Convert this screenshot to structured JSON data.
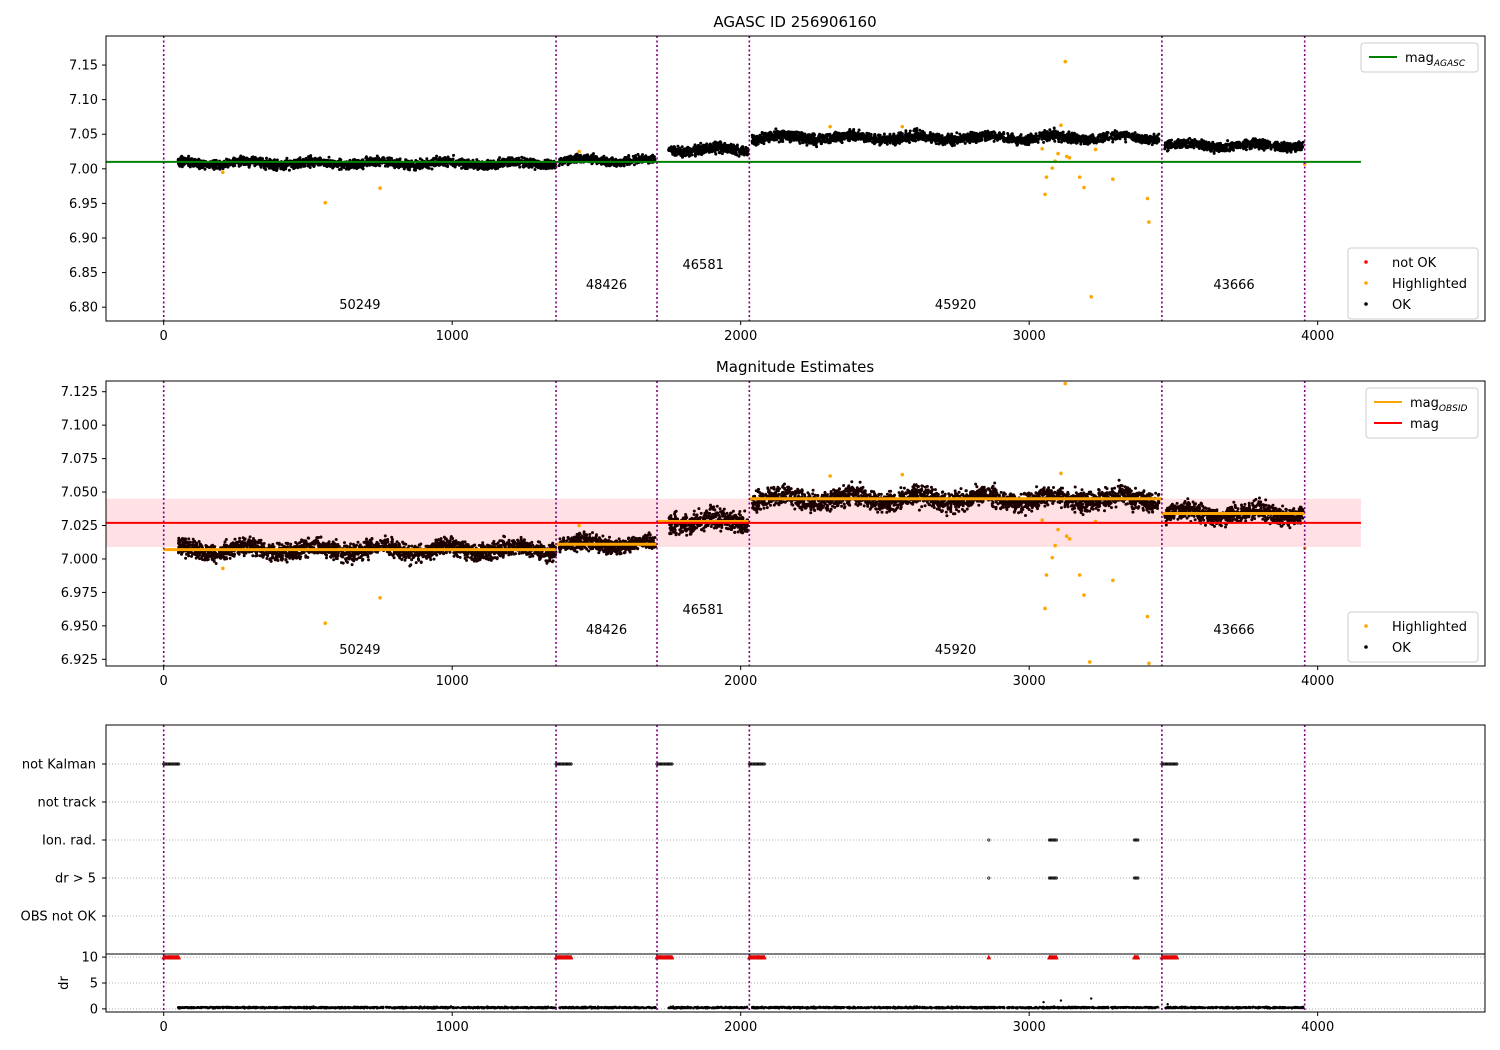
{
  "chart_data": [
    {
      "type": "scatter",
      "title": "AGASC ID 256906160",
      "xlim": [
        -200,
        4580
      ],
      "ylim": [
        6.78,
        7.192
      ],
      "x_ticks": [
        0,
        1000,
        2000,
        3000,
        4000
      ],
      "y_ticks": [
        6.8,
        6.85,
        6.9,
        6.95,
        7.0,
        7.05,
        7.1,
        7.15
      ],
      "y_tick_labels": [
        "6.80",
        "6.85",
        "6.90",
        "6.95",
        "7.00",
        "7.05",
        "7.10",
        "7.15"
      ],
      "grid": false,
      "legend_upper": {
        "placement": "top-right",
        "entries": [
          {
            "label": "mag",
            "subscript": "AGASC",
            "color": "#008000",
            "kind": "line"
          }
        ]
      },
      "legend_lower": {
        "placement": "bottom-right",
        "entries": [
          {
            "label": "not OK",
            "color": "#ff0000",
            "kind": "dot"
          },
          {
            "label": "Highlighted",
            "color": "#ffa500",
            "kind": "dot"
          },
          {
            "label": "OK",
            "color": "#000000",
            "kind": "dot"
          }
        ]
      },
      "reference_lines": [
        {
          "series": "mag_AGASC",
          "y": 7.01,
          "x_range": [
            -200,
            4150
          ],
          "color": "#008000"
        }
      ],
      "obsid_boundaries": [
        0,
        1360,
        1710,
        2030,
        3460,
        3955
      ],
      "obsid_labels": [
        {
          "text": "50249",
          "x": 680,
          "y": 6.797
        },
        {
          "text": "48426",
          "x": 1535,
          "y": 6.826
        },
        {
          "text": "46581",
          "x": 1870,
          "y": 6.855
        },
        {
          "text": "45920",
          "x": 2745,
          "y": 6.797
        },
        {
          "text": "43666",
          "x": 3710,
          "y": 6.826
        }
      ],
      "segments_ok": [
        {
          "x": [
            50,
            1360
          ],
          "mean": 7.008,
          "spread": 0.009
        },
        {
          "x": [
            1370,
            1705
          ],
          "mean": 7.012,
          "spread": 0.008
        },
        {
          "x": [
            1750,
            2025
          ],
          "mean": 7.028,
          "spread": 0.01
        },
        {
          "x": [
            2040,
            3450
          ],
          "mean": 7.045,
          "spread": 0.01
        },
        {
          "x": [
            3470,
            3950
          ],
          "mean": 7.034,
          "spread": 0.009
        }
      ],
      "highlighted_points": [
        [
          205,
          6.995
        ],
        [
          560,
          6.951
        ],
        [
          750,
          6.972
        ],
        [
          1440,
          7.025
        ],
        [
          2310,
          7.061
        ],
        [
          2560,
          7.061
        ],
        [
          3045,
          7.029
        ],
        [
          3055,
          6.963
        ],
        [
          3060,
          6.988
        ],
        [
          3080,
          7.001
        ],
        [
          3090,
          7.011
        ],
        [
          3100,
          7.022
        ],
        [
          3110,
          7.063
        ],
        [
          3125,
          7.155
        ],
        [
          3130,
          7.018
        ],
        [
          3140,
          7.016
        ],
        [
          3175,
          6.988
        ],
        [
          3190,
          6.973
        ],
        [
          3215,
          6.815
        ],
        [
          3230,
          7.028
        ],
        [
          3290,
          6.985
        ],
        [
          3410,
          6.957
        ],
        [
          3415,
          6.923
        ],
        [
          3955,
          7.007
        ]
      ]
    },
    {
      "type": "scatter",
      "title": "Magnitude Estimates",
      "xlim": [
        -200,
        4580
      ],
      "ylim": [
        6.92,
        7.133
      ],
      "x_ticks": [
        0,
        1000,
        2000,
        3000,
        4000
      ],
      "y_ticks": [
        6.925,
        6.95,
        6.975,
        7.0,
        7.025,
        7.05,
        7.075,
        7.1,
        7.125
      ],
      "y_tick_labels": [
        "6.925",
        "6.950",
        "6.975",
        "7.000",
        "7.025",
        "7.050",
        "7.075",
        "7.100",
        "7.125"
      ],
      "grid": false,
      "legend_upper": {
        "placement": "top-right",
        "entries": [
          {
            "label": "mag",
            "subscript": "OBSID",
            "color": "#ffa500",
            "kind": "line"
          },
          {
            "label": "mag",
            "subscript": "",
            "color": "#ff0000",
            "kind": "line"
          }
        ]
      },
      "legend_lower": {
        "placement": "bottom-right",
        "entries": [
          {
            "label": "Highlighted",
            "color": "#ffa500",
            "kind": "dot"
          },
          {
            "label": "OK",
            "color": "#000000",
            "kind": "dot"
          }
        ]
      },
      "mag_line": {
        "y": 7.027,
        "band": [
          7.009,
          7.045
        ],
        "x_range": [
          -200,
          4150
        ],
        "color": "#ff0000",
        "band_color": "#ffe0e4"
      },
      "obsid_mean_lines": [
        {
          "x": [
            0,
            1360
          ],
          "y": 7.007
        },
        {
          "x": [
            1360,
            1710
          ],
          "y": 7.011
        },
        {
          "x": [
            1710,
            2030
          ],
          "y": 7.028
        },
        {
          "x": [
            2030,
            3460
          ],
          "y": 7.045
        },
        {
          "x": [
            3460,
            3955
          ],
          "y": 7.034
        }
      ],
      "obsid_boundaries": [
        0,
        1360,
        1710,
        2030,
        3460,
        3955
      ],
      "obsid_labels": [
        {
          "text": "50249",
          "x": 680,
          "y": 6.929
        },
        {
          "text": "48426",
          "x": 1535,
          "y": 6.944
        },
        {
          "text": "46581",
          "x": 1870,
          "y": 6.959
        },
        {
          "text": "45920",
          "x": 2745,
          "y": 6.929
        },
        {
          "text": "43666",
          "x": 3710,
          "y": 6.944
        }
      ],
      "segments_ok": [
        {
          "x": [
            50,
            1360
          ],
          "mean": 7.007,
          "spread": 0.009
        },
        {
          "x": [
            1370,
            1705
          ],
          "mean": 7.011,
          "spread": 0.008
        },
        {
          "x": [
            1750,
            2025
          ],
          "mean": 7.028,
          "spread": 0.01
        },
        {
          "x": [
            2040,
            3450
          ],
          "mean": 7.045,
          "spread": 0.01
        },
        {
          "x": [
            3470,
            3950
          ],
          "mean": 7.034,
          "spread": 0.009
        }
      ],
      "highlighted_points": [
        [
          205,
          6.993
        ],
        [
          560,
          6.952
        ],
        [
          750,
          6.971
        ],
        [
          1440,
          7.025
        ],
        [
          2310,
          7.062
        ],
        [
          2560,
          7.063
        ],
        [
          3045,
          7.029
        ],
        [
          3055,
          6.963
        ],
        [
          3060,
          6.988
        ],
        [
          3080,
          7.001
        ],
        [
          3090,
          7.01
        ],
        [
          3100,
          7.022
        ],
        [
          3110,
          7.064
        ],
        [
          3125,
          7.131
        ],
        [
          3130,
          7.017
        ],
        [
          3140,
          7.015
        ],
        [
          3175,
          6.988
        ],
        [
          3190,
          6.973
        ],
        [
          3210,
          6.923
        ],
        [
          3230,
          7.028
        ],
        [
          3290,
          6.984
        ],
        [
          3410,
          6.957
        ],
        [
          3415,
          6.922
        ],
        [
          3955,
          7.008
        ]
      ]
    },
    {
      "type": "scatter",
      "title": "",
      "xlim": [
        -200,
        4580
      ],
      "categories": [
        "not Kalman",
        "not track",
        "Ion. rad.",
        "dr > 5",
        "OBS not OK"
      ],
      "flags": {
        "not Kalman": [
          [
            0,
            55
          ],
          [
            1360,
            1415
          ],
          [
            1710,
            1765
          ],
          [
            2030,
            2085
          ],
          [
            3460,
            3515
          ]
        ],
        "not track": [],
        "Ion. rad.": [
          [
            2860,
            2862
          ],
          [
            3070,
            3095
          ],
          [
            3365,
            3380
          ]
        ],
        "dr > 5": [
          [
            2860,
            2862
          ],
          [
            3070,
            3095
          ],
          [
            3365,
            3380
          ]
        ],
        "OBS not OK": []
      },
      "obsid_boundaries": [
        0,
        1360,
        1710,
        2030,
        3460,
        3955
      ],
      "grid": "horizontal dotted"
    },
    {
      "type": "scatter",
      "title": "",
      "ylabel": "dr",
      "xlim": [
        -200,
        4580
      ],
      "ylim": [
        -0.6,
        10.6
      ],
      "x_ticks": [
        0,
        1000,
        2000,
        3000,
        4000
      ],
      "y_ticks": [
        0,
        5,
        10
      ],
      "grid": "horizontal dotted",
      "clipped_markers": [
        [
          0,
          55
        ],
        [
          1360,
          1415
        ],
        [
          1710,
          1765
        ],
        [
          2030,
          2085
        ],
        [
          2860,
          2862
        ],
        [
          3070,
          3095
        ],
        [
          3365,
          3380
        ],
        [
          3460,
          3515
        ]
      ],
      "clip_value": 10,
      "baseline": {
        "segments": [
          [
            50,
            1360
          ],
          [
            1370,
            1705
          ],
          [
            1750,
            2025
          ],
          [
            2040,
            3450
          ],
          [
            3470,
            3950
          ]
        ],
        "mean": 0.25,
        "spread": 0.15
      },
      "spikes": [
        [
          3050,
          1.3
        ],
        [
          3110,
          1.6
        ],
        [
          3215,
          2.0
        ],
        [
          3480,
          0.9
        ]
      ],
      "obsid_boundaries": [
        0,
        1360,
        1710,
        2030,
        3460,
        3955
      ]
    }
  ]
}
